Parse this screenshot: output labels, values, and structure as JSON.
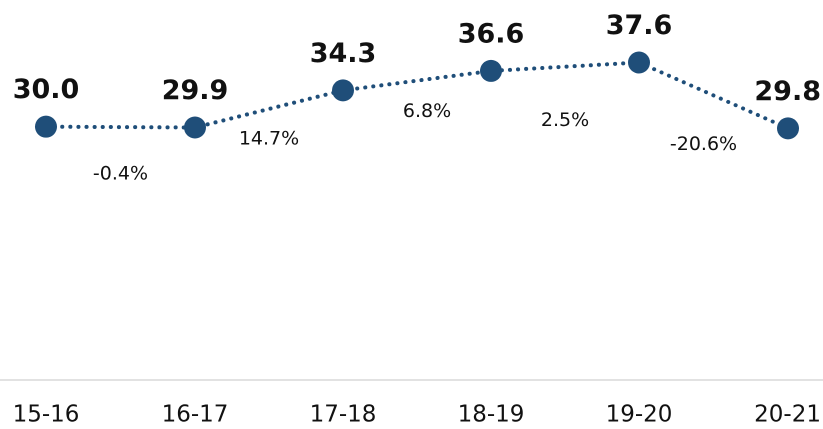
{
  "chart_data": {
    "type": "line",
    "categories": [
      "15-16",
      "16-17",
      "17-18",
      "18-19",
      "19-20",
      "20-21"
    ],
    "values": [
      30.0,
      29.9,
      34.3,
      36.6,
      37.6,
      29.8
    ],
    "value_labels": [
      "30.0",
      "29.9",
      "34.3",
      "36.6",
      "37.6",
      "29.8"
    ],
    "change_labels": [
      "-0.4%",
      "14.7%",
      "6.8%",
      "2.5%",
      "-20.6%"
    ],
    "color": "#1f4e79",
    "ylim": [
      0,
      45
    ]
  }
}
